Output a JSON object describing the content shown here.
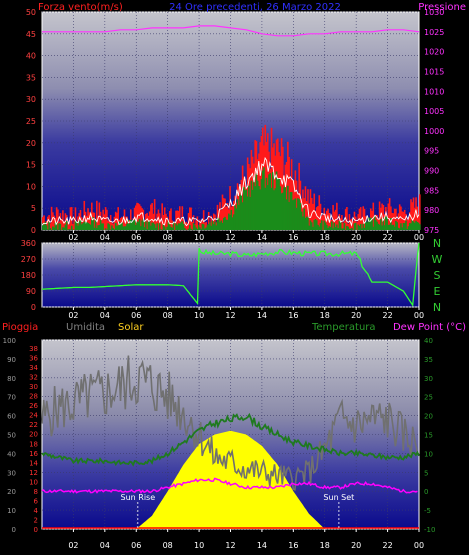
{
  "colors": {
    "background": "#000000",
    "wind": "#ff1a1a",
    "wind_avg": "#1a8c1a",
    "wind_gust_line": "#ffffff",
    "pressure": "#ff33ff",
    "direction": "#33ff33",
    "humidity": "#707070",
    "solar": "#ffff00",
    "temperature": "#1f7a1f",
    "dewpoint": "#ff00ff",
    "rain": "#ff0000",
    "axis_left": "#ff4040",
    "axis_right": "#ff33ff",
    "axis_green": "#33cc33"
  },
  "top": {
    "title": "24 Ore precedenti, 26 Marzo 2022",
    "left_title": "Forza vento(m/s)",
    "right_title": "Pressione",
    "left_ticks": [
      "0",
      "5",
      "10",
      "15",
      "20",
      "25",
      "30",
      "35",
      "40",
      "45",
      "50"
    ],
    "right_ticks": [
      "975",
      "980",
      "985",
      "990",
      "995",
      "1000",
      "1005",
      "1010",
      "1015",
      "1020",
      "1025",
      "1030"
    ],
    "x_ticks": [
      "02",
      "04",
      "06",
      "08",
      "10",
      "12",
      "14",
      "16",
      "18",
      "20",
      "22",
      "00"
    ]
  },
  "middle": {
    "left_ticks": [
      "0",
      "90",
      "180",
      "270",
      "360"
    ],
    "right_labels": [
      "N",
      "W",
      "S",
      "E",
      "N"
    ],
    "x_ticks": [
      "02",
      "04",
      "06",
      "08",
      "10",
      "12",
      "14",
      "16",
      "18",
      "20",
      "22",
      "00"
    ]
  },
  "bottom": {
    "label_rain": "Pioggia",
    "label_humidity": "Umidita",
    "label_solar": "Solar",
    "label_temp": "Temperatura",
    "label_dew": "Dew Point (°C)",
    "humidity_ticks": [
      "0",
      "10",
      "20",
      "30",
      "40",
      "50",
      "60",
      "70",
      "80",
      "90",
      "100"
    ],
    "rain_ticks": [
      "0",
      "2",
      "4",
      "6",
      "8",
      "10",
      "12",
      "14",
      "16",
      "18",
      "20",
      "22",
      "24",
      "26",
      "28",
      "30",
      "32",
      "34",
      "36",
      "38"
    ],
    "temp_ticks": [
      "-10",
      "-5",
      "0",
      "5",
      "10",
      "15",
      "20",
      "25",
      "30",
      "35",
      "40"
    ],
    "sunrise_label": "Sun Rise",
    "sunset_label": "Sun Set",
    "x_ticks": [
      "02",
      "04",
      "06",
      "08",
      "10",
      "12",
      "14",
      "16",
      "18",
      "20",
      "22",
      "00"
    ]
  },
  "chart_data": [
    {
      "type": "line",
      "name": "wind_pressure",
      "x_hours": [
        0,
        1,
        2,
        3,
        4,
        5,
        6,
        7,
        8,
        9,
        10,
        11,
        12,
        13,
        14,
        15,
        16,
        17,
        18,
        19,
        20,
        21,
        22,
        23,
        24
      ],
      "series": [
        {
          "name": "gust",
          "axis": "left",
          "values": [
            3,
            4,
            3,
            5,
            4,
            3,
            4,
            5,
            3,
            4,
            3,
            4,
            8,
            13,
            19,
            18,
            14,
            7,
            5,
            4,
            3,
            4,
            5,
            4,
            6
          ]
        },
        {
          "name": "average",
          "axis": "left",
          "values": [
            1,
            1,
            1,
            2,
            1,
            1,
            2,
            1,
            1,
            1,
            1,
            2,
            4,
            9,
            12,
            11,
            7,
            2,
            1,
            1,
            1,
            2,
            2,
            1,
            2
          ]
        },
        {
          "name": "speed",
          "axis": "left",
          "values": [
            2,
            2,
            2,
            3,
            2,
            2,
            3,
            3,
            2,
            2,
            2,
            3,
            6,
            11,
            15,
            13,
            10,
            4,
            3,
            2,
            2,
            3,
            3,
            2,
            4
          ]
        },
        {
          "name": "pressure",
          "axis": "right",
          "values": [
            1025,
            1025,
            1025,
            1025,
            1025,
            1025.5,
            1025.5,
            1026,
            1026,
            1026,
            1026.5,
            1026.5,
            1026,
            1025.5,
            1024.5,
            1024,
            1024,
            1024.5,
            1024.5,
            1025,
            1025,
            1025,
            1025.5,
            1025.5,
            1025
          ]
        }
      ],
      "ylim_left": [
        0,
        50
      ],
      "ylim_right": [
        975,
        1030
      ]
    },
    {
      "type": "line",
      "name": "wind_direction",
      "x_hours": [
        0,
        1,
        2,
        3,
        4,
        5,
        6,
        7,
        8,
        9,
        9.9,
        10,
        10.1,
        11,
        12,
        13,
        14,
        15,
        16,
        17,
        18,
        19,
        20,
        21,
        22,
        23,
        23.6,
        23.8,
        24
      ],
      "series": [
        {
          "name": "direction",
          "values": [
            100,
            105,
            110,
            110,
            115,
            120,
            125,
            125,
            125,
            120,
            20,
            330,
            310,
            300,
            300,
            290,
            300,
            310,
            305,
            300,
            300,
            300,
            300,
            140,
            140,
            90,
            10,
            200,
            360
          ]
        }
      ],
      "ylim": [
        0,
        360
      ]
    },
    {
      "type": "area",
      "name": "solar_temp_humidity",
      "x_hours": [
        0,
        1,
        2,
        3,
        4,
        5,
        6,
        7,
        8,
        9,
        10,
        11,
        12,
        13,
        14,
        15,
        16,
        17,
        18,
        19,
        20,
        21,
        22,
        23,
        24
      ],
      "series": [
        {
          "name": "humidity",
          "axis": "humidity",
          "values": [
            58,
            64,
            66,
            70,
            72,
            75,
            80,
            76,
            70,
            62,
            50,
            38,
            35,
            32,
            30,
            28,
            27,
            30,
            42,
            58,
            55,
            58,
            58,
            50,
            44
          ]
        },
        {
          "name": "solar",
          "axis": "humidity",
          "values": [
            0,
            0,
            0,
            0,
            0,
            0,
            0,
            7,
            20,
            34,
            45,
            50,
            52,
            50,
            44,
            34,
            20,
            8,
            0,
            0,
            0,
            0,
            0,
            0,
            0
          ]
        },
        {
          "name": "temperature",
          "axis": "temp",
          "values": [
            10,
            9,
            8,
            8,
            8,
            7.5,
            7.5,
            8,
            10,
            13,
            16,
            18,
            19,
            20,
            17,
            15,
            13,
            12,
            11,
            10,
            10,
            9.5,
            9,
            9,
            10
          ]
        },
        {
          "name": "dewpoint",
          "axis": "temp",
          "values": [
            0,
            0,
            0,
            0,
            0,
            0,
            0,
            0,
            1,
            2,
            3,
            3,
            2,
            1,
            1,
            1,
            2,
            2,
            1,
            1,
            2,
            2,
            1,
            0,
            0
          ]
        },
        {
          "name": "rain",
          "axis": "rain",
          "values": [
            0,
            0,
            0,
            0,
            0,
            0,
            0,
            0,
            0,
            0,
            0,
            0,
            0,
            0,
            0,
            0,
            0,
            0,
            0,
            0,
            0,
            0,
            0,
            0,
            0
          ]
        }
      ],
      "ylim_humidity": [
        0,
        100
      ],
      "ylim_temp": [
        -10,
        40
      ],
      "sunrise_hour": 6.1,
      "sunset_hour": 18.9
    }
  ]
}
